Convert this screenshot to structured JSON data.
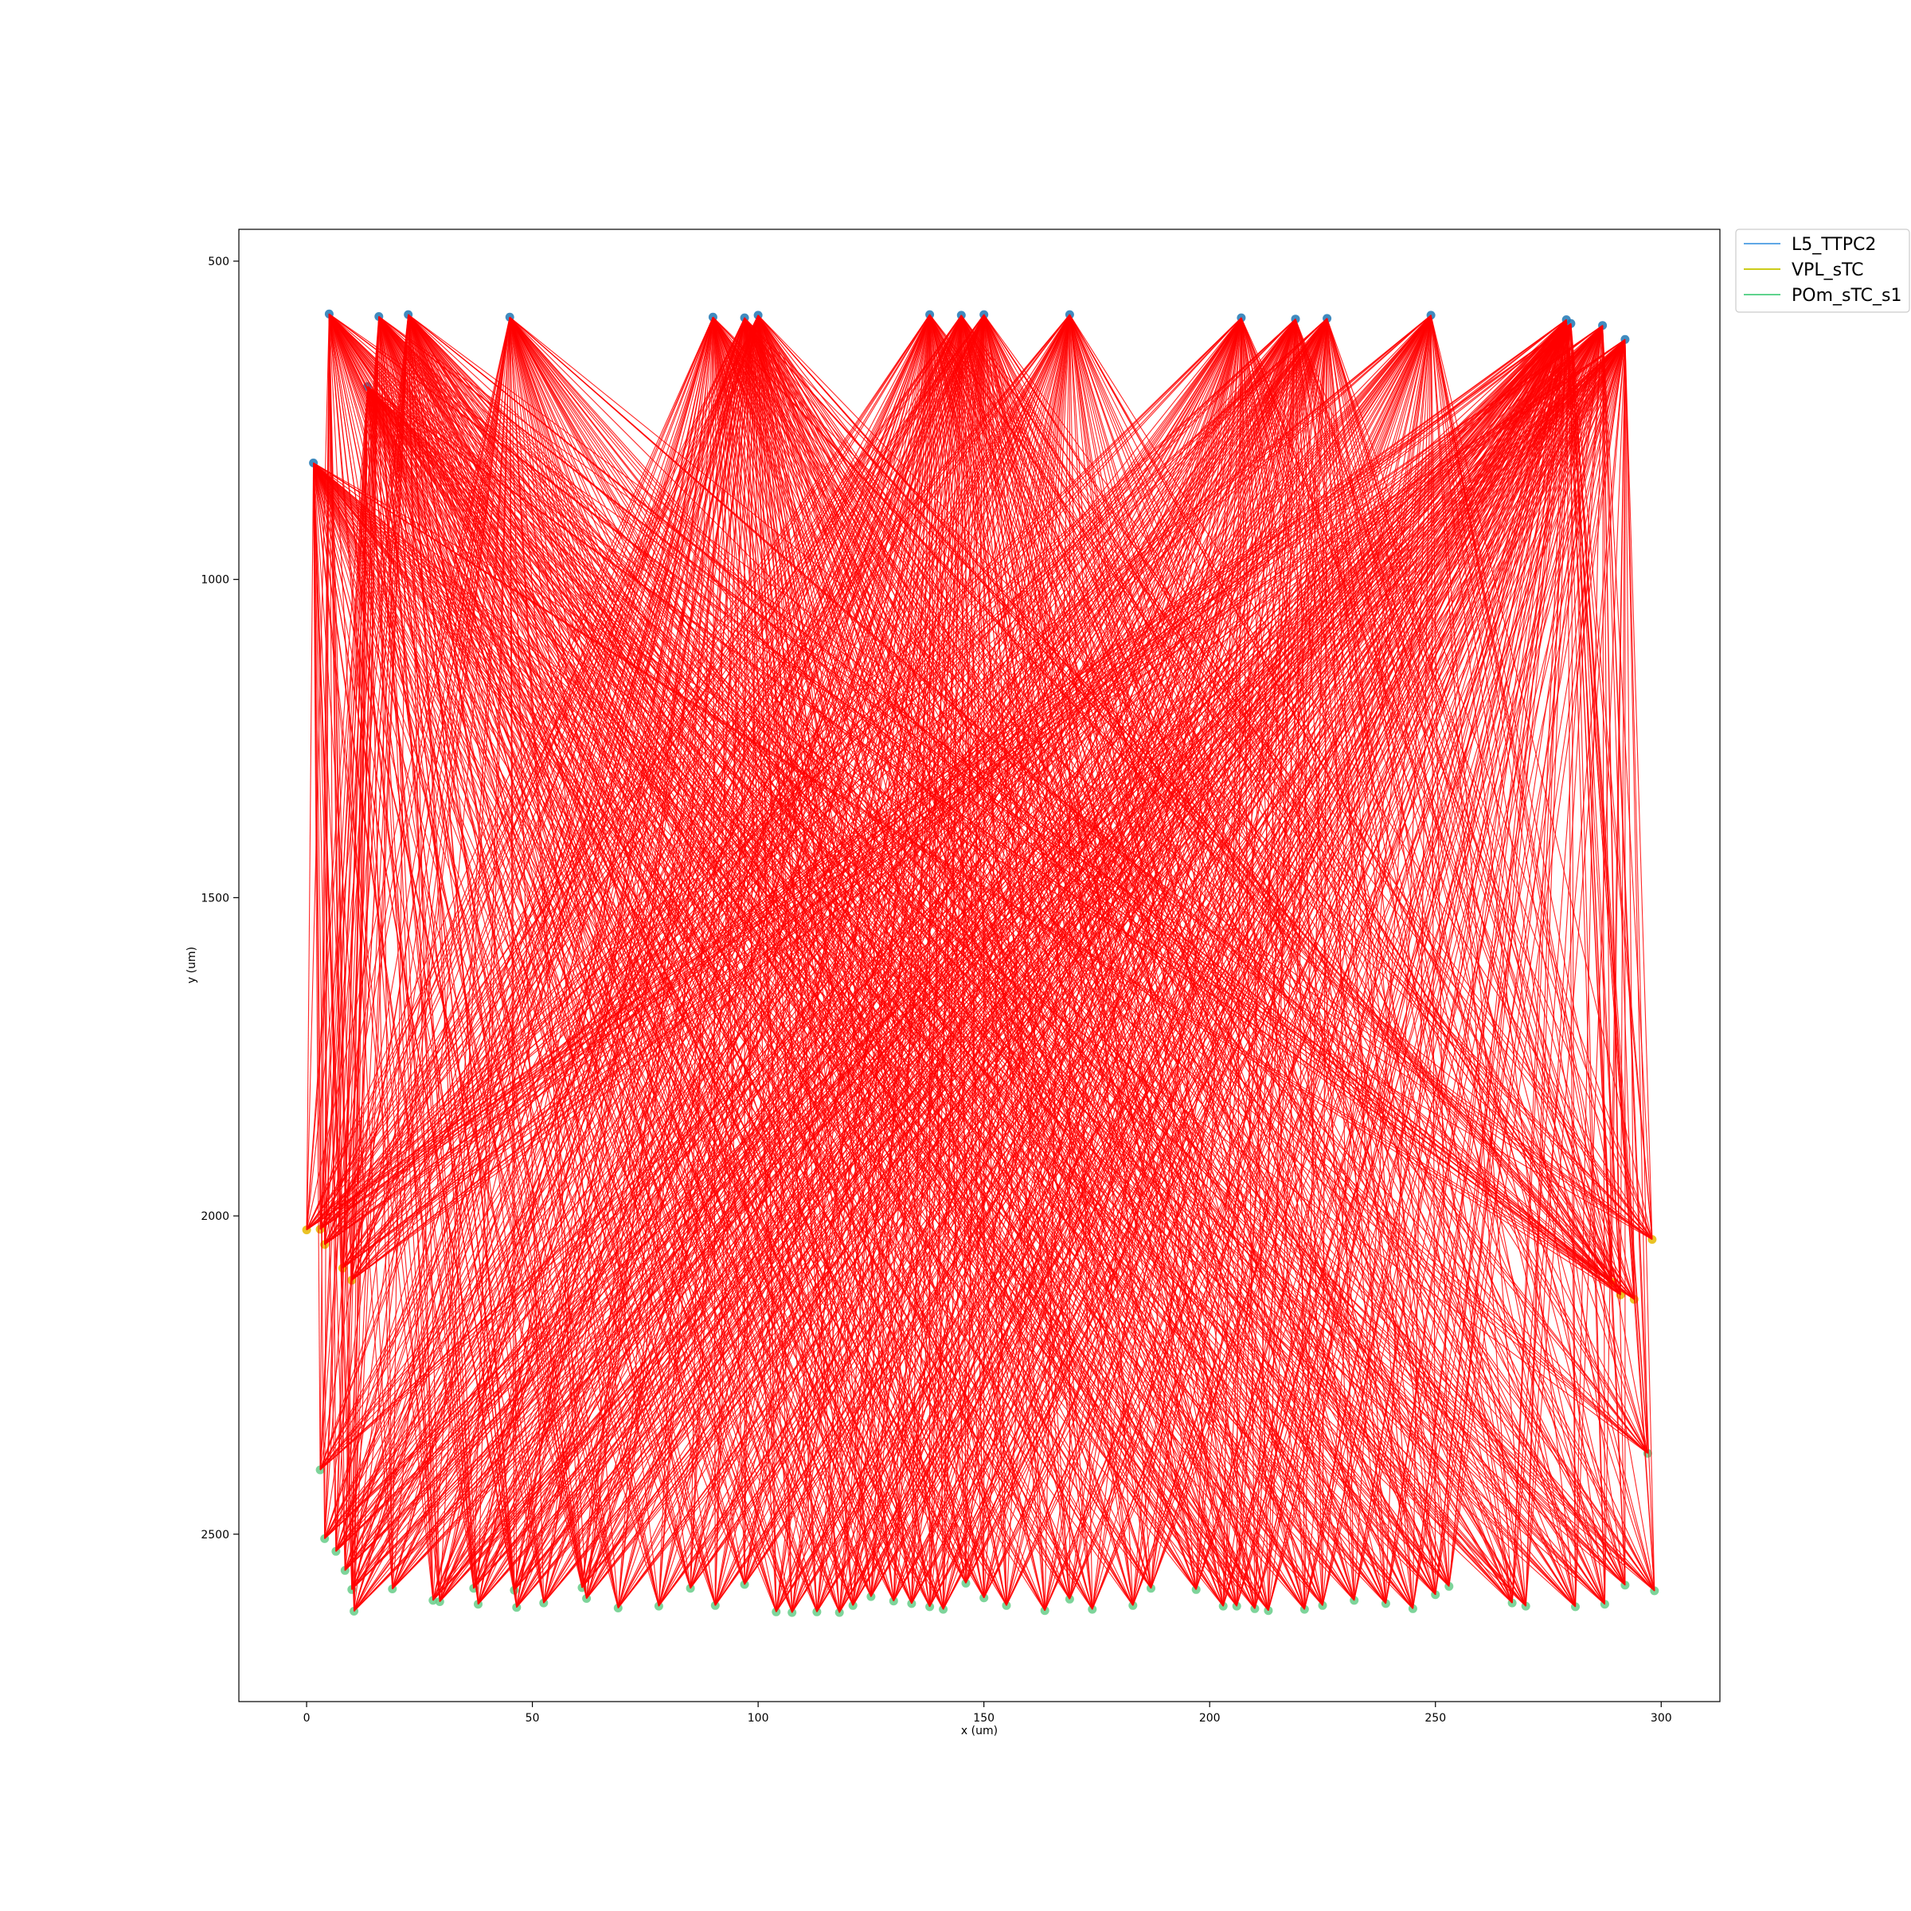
{
  "chart_data": {
    "type": "scatter",
    "title": "",
    "xlabel": "x (um)",
    "ylabel": "y (um)",
    "xlim": [
      -15,
      313
    ],
    "ylim": [
      2763,
      450
    ],
    "y_inverted": true,
    "grid": false,
    "legend_placement": "outside-top-right",
    "x_ticks": [
      0,
      50,
      100,
      150,
      200,
      250,
      300
    ],
    "x_tick_labels": [
      "0",
      "50",
      "100",
      "150",
      "200",
      "250",
      "300"
    ],
    "y_ticks": [
      500,
      1000,
      1500,
      2000,
      2500
    ],
    "y_tick_labels": [
      "500",
      "1000",
      "1500",
      "2000",
      "2500"
    ],
    "connection_color": "#ff0000",
    "series": [
      {
        "name": "L5_TTPC2",
        "color": "#1f77b4",
        "legend_color": "#5fa8e6",
        "points": [
          [
            1.5,
            817
          ],
          [
            5,
            583
          ],
          [
            13.5,
            697
          ],
          [
            16,
            587
          ],
          [
            22.5,
            584
          ],
          [
            45,
            588
          ],
          [
            90,
            588
          ],
          [
            97,
            589
          ],
          [
            100,
            585
          ],
          [
            138,
            584
          ],
          [
            145,
            585
          ],
          [
            150,
            584
          ],
          [
            169,
            584
          ],
          [
            207,
            589
          ],
          [
            219,
            591
          ],
          [
            226,
            590
          ],
          [
            249,
            585
          ],
          [
            279,
            592
          ],
          [
            280,
            598
          ],
          [
            287,
            601
          ],
          [
            292,
            623
          ]
        ]
      },
      {
        "name": "VPL_sTC",
        "color": "#e6b800",
        "legend_color": "#cccc1a",
        "points": [
          [
            0,
            2022
          ],
          [
            3,
            2021
          ],
          [
            4,
            2045
          ],
          [
            8,
            2082
          ],
          [
            10,
            2101
          ],
          [
            289,
            2104
          ],
          [
            291,
            2124
          ],
          [
            294,
            2131
          ],
          [
            298,
            2037
          ]
        ]
      },
      {
        "name": "POm_sTC_s1",
        "color": "#66cc88",
        "legend_color": "#5fd38d",
        "points": [
          [
            3,
            2399
          ],
          [
            4,
            2507
          ],
          [
            6.5,
            2527
          ],
          [
            8.5,
            2557
          ],
          [
            10,
            2587
          ],
          [
            10.5,
            2621
          ],
          [
            19,
            2586
          ],
          [
            28,
            2604
          ],
          [
            29.5,
            2606
          ],
          [
            37,
            2585
          ],
          [
            38,
            2610
          ],
          [
            46,
            2588
          ],
          [
            46.5,
            2615
          ],
          [
            52.5,
            2608
          ],
          [
            61,
            2584
          ],
          [
            62,
            2601
          ],
          [
            69,
            2616
          ],
          [
            78,
            2613
          ],
          [
            85,
            2585
          ],
          [
            90.5,
            2612
          ],
          [
            97,
            2579
          ],
          [
            104,
            2622
          ],
          [
            107.5,
            2623
          ],
          [
            113,
            2622
          ],
          [
            118,
            2623
          ],
          [
            121,
            2612
          ],
          [
            125,
            2598
          ],
          [
            130,
            2605
          ],
          [
            134,
            2609
          ],
          [
            138,
            2614
          ],
          [
            141,
            2618
          ],
          [
            146,
            2577
          ],
          [
            150,
            2600
          ],
          [
            155,
            2612
          ],
          [
            163.5,
            2620
          ],
          [
            169,
            2602
          ],
          [
            174,
            2618
          ],
          [
            183,
            2612
          ],
          [
            187,
            2585
          ],
          [
            197,
            2587
          ],
          [
            203,
            2613
          ],
          [
            206,
            2613
          ],
          [
            210,
            2617
          ],
          [
            213,
            2620
          ],
          [
            221,
            2618
          ],
          [
            225,
            2612
          ],
          [
            232,
            2604
          ],
          [
            239,
            2609
          ],
          [
            245,
            2617
          ],
          [
            250,
            2595
          ],
          [
            253,
            2582
          ],
          [
            267,
            2608
          ],
          [
            270,
            2613
          ],
          [
            281,
            2614
          ],
          [
            287.5,
            2610
          ],
          [
            292,
            2580
          ],
          [
            297,
            2373
          ],
          [
            298.5,
            2589
          ]
        ]
      }
    ]
  }
}
